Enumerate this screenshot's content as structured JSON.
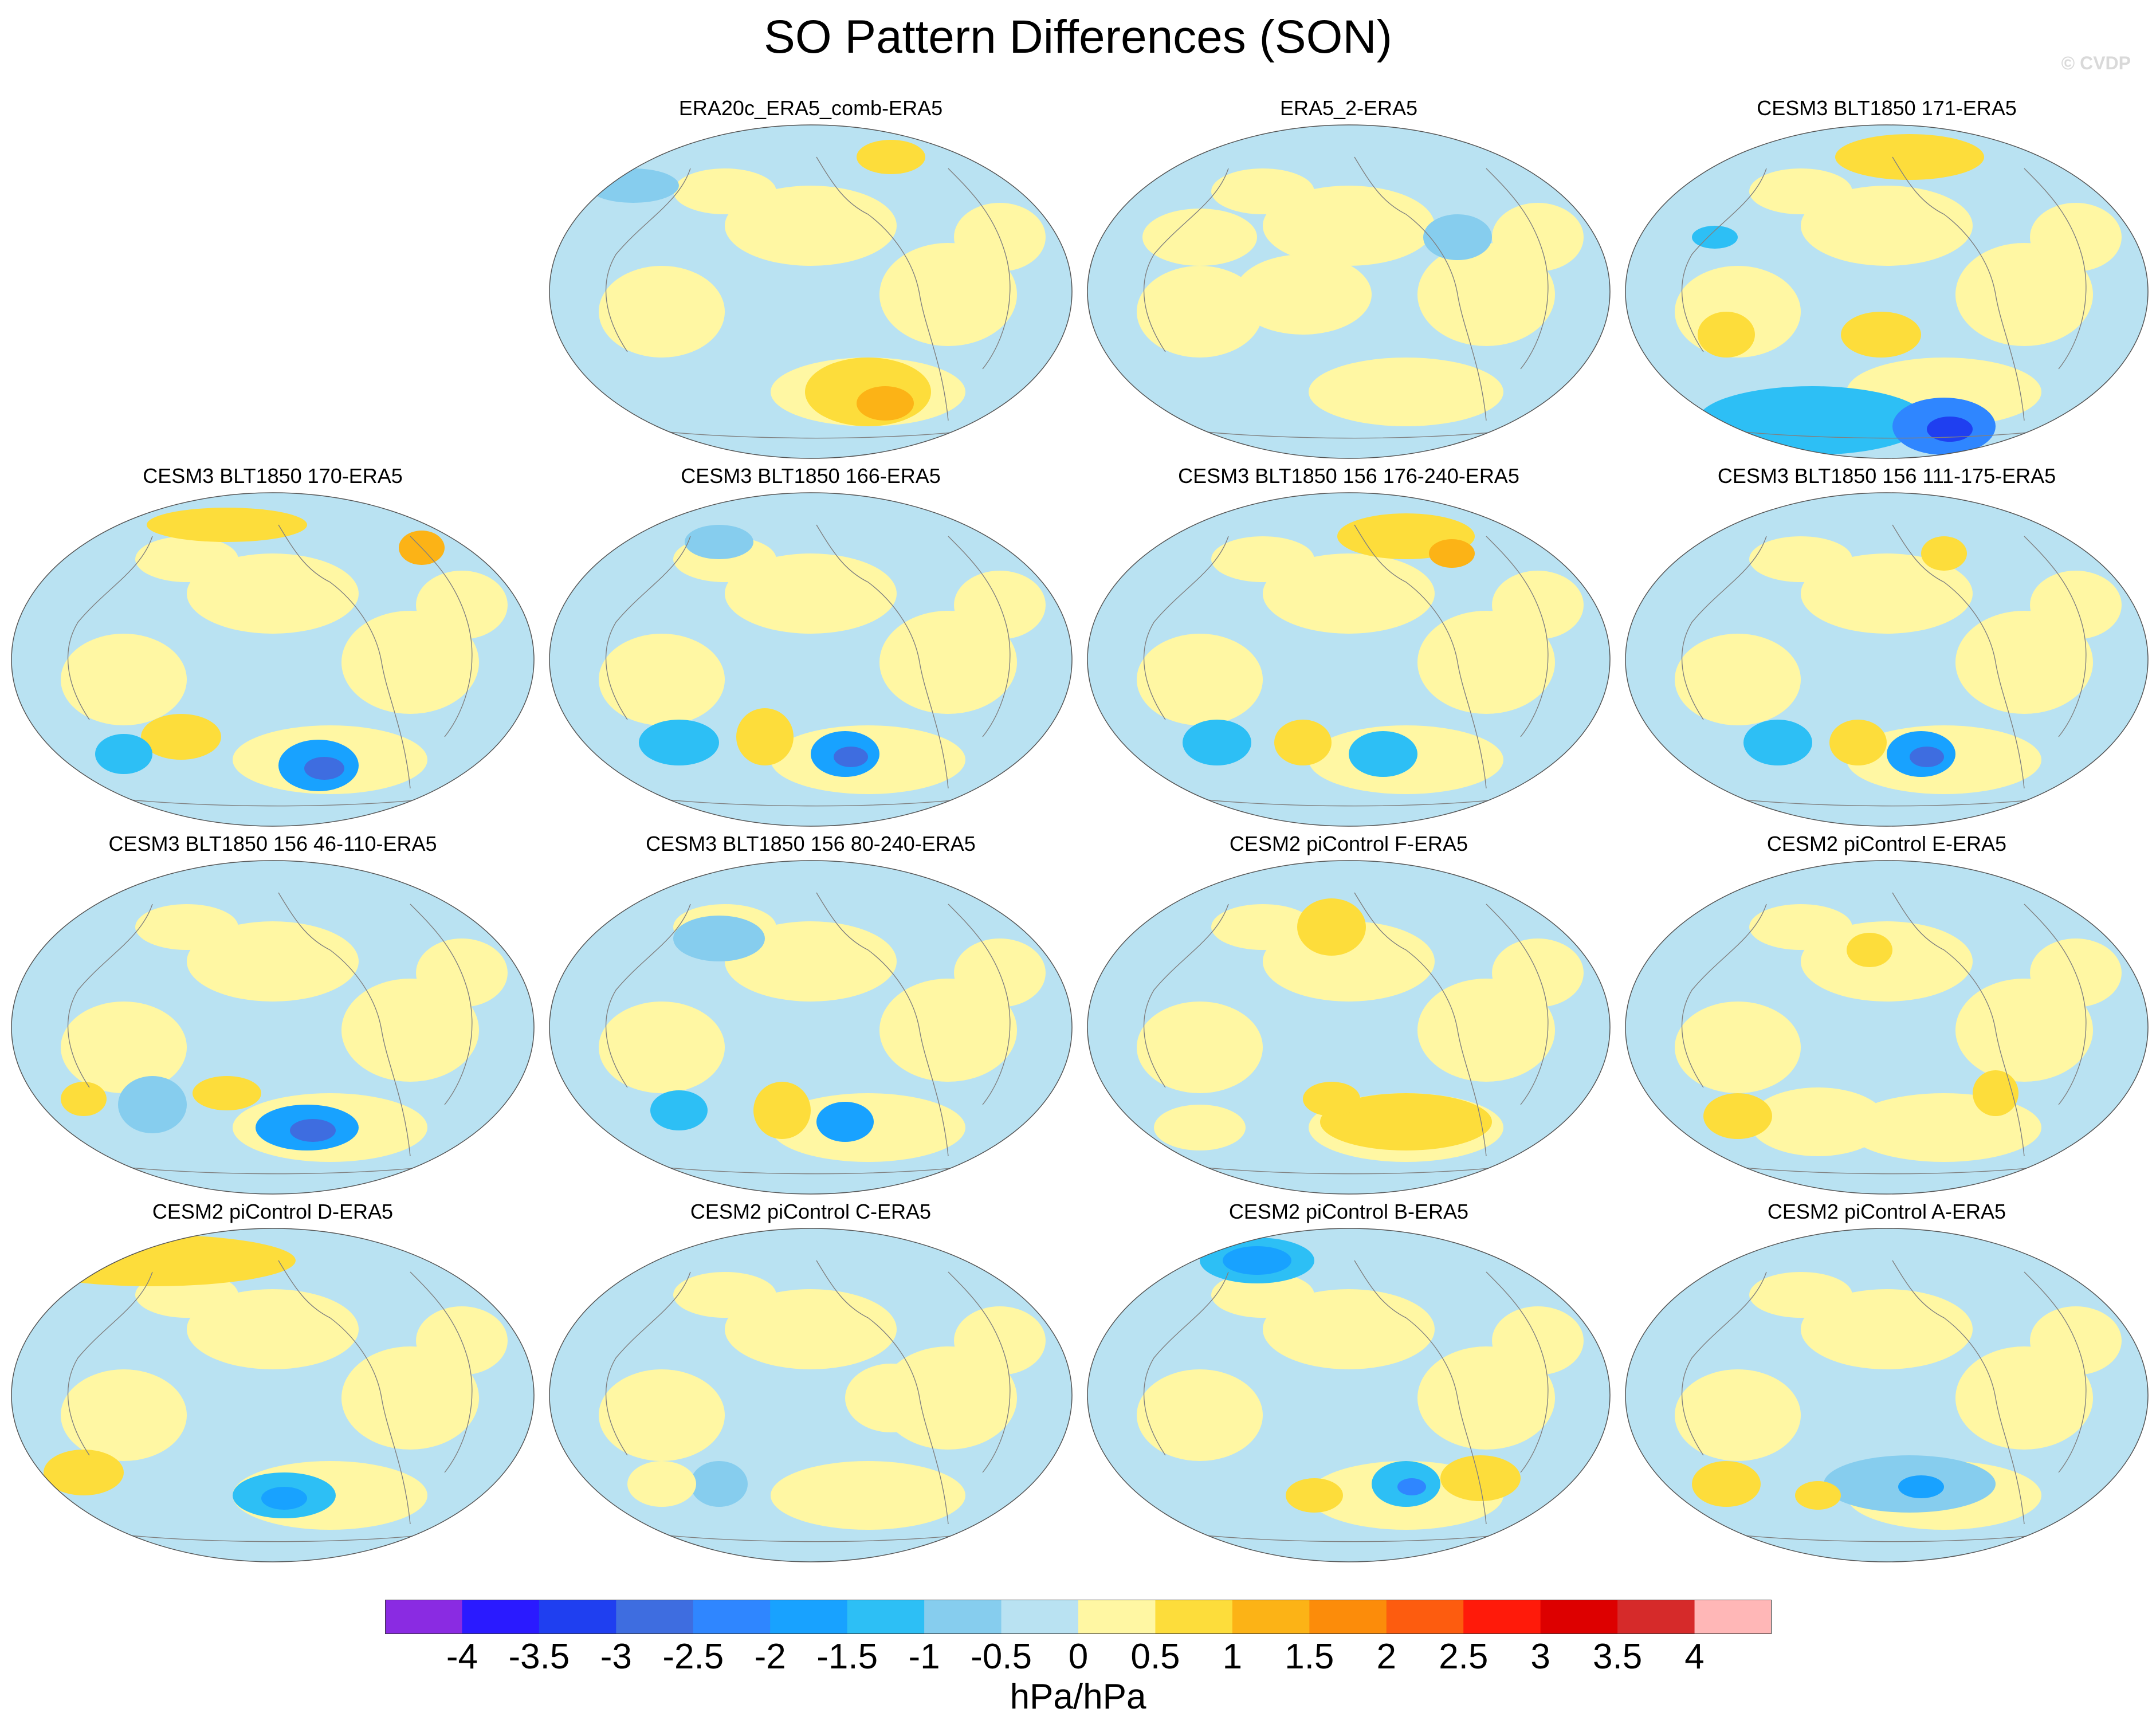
{
  "figure": {
    "title": "SO Pattern Differences (SON)",
    "watermark": "© CVDP",
    "units": "hPa/hPa"
  },
  "colors": {
    "levels": [
      "#8a2be2",
      "#2a1aff",
      "#1f3ff0",
      "#3e6de0",
      "#2f86ff",
      "#18a2ff",
      "#2dbff5",
      "#86cdee",
      "#b9e2f2",
      "#fff7a3",
      "#fddd3b",
      "#fcb316",
      "#fc8c0a",
      "#fd5c0f",
      "#ff1a0a",
      "#dd0000",
      "#d62a2a",
      "#ffb7b7"
    ],
    "coast": "#808080",
    "ocean_base": "#b9e2f2"
  },
  "chart_data": {
    "type": "map-grid",
    "colorbar": {
      "ticks": [
        "-4",
        "-3.5",
        "-3",
        "-2.5",
        "-2",
        "-1.5",
        "-1",
        "-0.5",
        "0",
        "0.5",
        "1",
        "1.5",
        "2",
        "2.5",
        "3",
        "3.5",
        "4"
      ],
      "min": -4,
      "max": 4,
      "step": 0.5
    },
    "panels": [
      {
        "title": "ERA20c_ERA5_comb-ERA5",
        "present": true
      },
      {
        "title": "ERA5_2-ERA5",
        "present": true
      },
      {
        "title": "CESM3 BLT1850 171-ERA5",
        "present": true
      },
      {
        "title": "CESM3 BLT1850 170-ERA5",
        "present": true
      },
      {
        "title": "CESM3 BLT1850 166-ERA5",
        "present": true
      },
      {
        "title": "CESM3 BLT1850 156 176-240-ERA5",
        "present": true
      },
      {
        "title": "CESM3 BLT1850 156 111-175-ERA5",
        "present": true
      },
      {
        "title": "CESM3 BLT1850 156 46-110-ERA5",
        "present": true
      },
      {
        "title": "CESM3 BLT1850 156 80-240-ERA5",
        "present": true
      },
      {
        "title": "CESM2 piControl F-ERA5",
        "present": true
      },
      {
        "title": "CESM2 piControl E-ERA5",
        "present": true
      },
      {
        "title": "CESM2 piControl D-ERA5",
        "present": true
      },
      {
        "title": "CESM2 piControl C-ERA5",
        "present": true
      },
      {
        "title": "CESM2 piControl B-ERA5",
        "present": true
      },
      {
        "title": "CESM2 piControl A-ERA5",
        "present": true
      }
    ]
  }
}
